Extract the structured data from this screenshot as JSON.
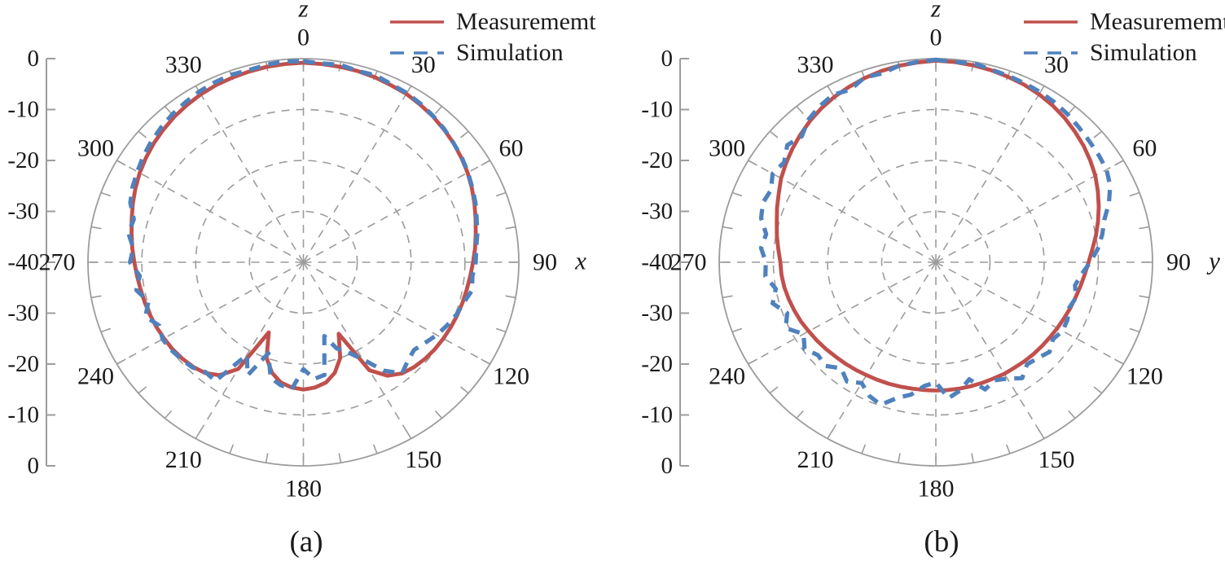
{
  "figure": {
    "background": "#ffffff",
    "text_color": "#1a1a1a",
    "grid_color": "#9c9c9c"
  },
  "legend": {
    "position": "top-right",
    "items": [
      {
        "label": "Measurememt",
        "color": "#c0504d",
        "line_style": "solid"
      },
      {
        "label": "Simulation",
        "color": "#4f81bd",
        "line_style": "dashed"
      }
    ]
  },
  "chart_data": [
    {
      "type": "line",
      "subtype": "polar-radiation-pattern",
      "caption": "(a)",
      "zenith_label": "z",
      "plane_label": "x",
      "grid": true,
      "legend_position": "top-right",
      "r_axis": {
        "min_db": -40,
        "max_db": 0,
        "step_db": 10,
        "tick_labels": [
          "0",
          "-10",
          "-20",
          "-30",
          "-40",
          "-30",
          "-20",
          "-10",
          "0"
        ],
        "ring_levels_db": [
          -10,
          -20,
          -30
        ]
      },
      "theta_axis": {
        "tick_step_deg": 10,
        "spoke_step_deg": 30,
        "tick_labels": [
          "0",
          "30",
          "60",
          "90",
          "120",
          "150",
          "180",
          "210",
          "240",
          "270",
          "300",
          "330"
        ]
      },
      "angles_deg": [
        0,
        5,
        10,
        15,
        20,
        25,
        30,
        35,
        40,
        45,
        50,
        55,
        60,
        65,
        70,
        75,
        80,
        85,
        90,
        95,
        100,
        105,
        110,
        115,
        120,
        125,
        130,
        135,
        140,
        145,
        150,
        155,
        160,
        165,
        170,
        175,
        180,
        185,
        190,
        195,
        200,
        205,
        210,
        215,
        220,
        225,
        230,
        235,
        240,
        245,
        250,
        255,
        260,
        265,
        270,
        275,
        280,
        285,
        290,
        295,
        300,
        305,
        310,
        315,
        320,
        325,
        330,
        335,
        340,
        345,
        350,
        355
      ],
      "series": [
        {
          "name": "Measurememt",
          "color": "#c0504d",
          "line_style": "solid",
          "values_db": [
            -0.8,
            -0.9,
            -1.0,
            -1.1,
            -1.3,
            -1.6,
            -1.8,
            -2.2,
            -2.6,
            -3.1,
            -3.6,
            -4.2,
            -4.8,
            -5.5,
            -6.2,
            -6.9,
            -7.5,
            -8.0,
            -8.5,
            -8.9,
            -9.2,
            -9.4,
            -9.6,
            -9.8,
            -10.0,
            -10.2,
            -10.5,
            -10.9,
            -11.5,
            -12.8,
            -15.5,
            -24.5,
            -20.0,
            -17.5,
            -16.0,
            -15.3,
            -15.0,
            -15.3,
            -16.0,
            -17.5,
            -20.0,
            -24.8,
            -15.8,
            -12.9,
            -11.6,
            -11.0,
            -10.6,
            -10.3,
            -10.1,
            -9.9,
            -9.7,
            -9.5,
            -9.3,
            -9.0,
            -8.6,
            -8.1,
            -7.6,
            -7.0,
            -6.3,
            -5.6,
            -4.9,
            -4.3,
            -3.7,
            -3.2,
            -2.7,
            -2.3,
            -1.9,
            -1.6,
            -1.4,
            -1.2,
            -1.0,
            -0.9
          ]
        },
        {
          "name": "Simulation",
          "color": "#4f81bd",
          "line_style": "dashed",
          "values_db": [
            -0.5,
            -0.8,
            -0.6,
            -1.1,
            -0.9,
            -1.4,
            -1.6,
            -2.0,
            -2.5,
            -3.0,
            -3.6,
            -4.1,
            -4.7,
            -5.4,
            -6.0,
            -6.7,
            -7.2,
            -7.8,
            -8.0,
            -8.5,
            -8.2,
            -9.2,
            -9.8,
            -10.6,
            -11.4,
            -12.4,
            -13.2,
            -12.6,
            -11.5,
            -14.0,
            -18.0,
            -20.5,
            -22.0,
            -25.0,
            -17.5,
            -17.0,
            -19.0,
            -15.0,
            -15.5,
            -16.5,
            -21.0,
            -15.5,
            -19.0,
            -11.5,
            -11.8,
            -10.8,
            -10.4,
            -10.0,
            -9.8,
            -10.5,
            -8.8,
            -10.2,
            -8.5,
            -9.5,
            -7.8,
            -8.3,
            -7.0,
            -7.4,
            -5.8,
            -5.0,
            -4.4,
            -3.7,
            -3.1,
            -2.6,
            -2.1,
            -1.7,
            -1.3,
            -1.0,
            -0.8,
            -0.9,
            -0.6,
            -0.4
          ]
        }
      ]
    },
    {
      "type": "line",
      "subtype": "polar-radiation-pattern",
      "caption": "(b)",
      "zenith_label": "z",
      "plane_label": "y",
      "grid": true,
      "legend_position": "top-right",
      "r_axis": {
        "min_db": -40,
        "max_db": 0,
        "step_db": 10,
        "tick_labels": [
          "0",
          "-10",
          "-20",
          "-30",
          "-40",
          "-30",
          "-20",
          "-10",
          "0"
        ],
        "ring_levels_db": [
          -10,
          -20,
          -30
        ]
      },
      "theta_axis": {
        "tick_step_deg": 10,
        "spoke_step_deg": 30,
        "tick_labels": [
          "0",
          "30",
          "60",
          "90",
          "120",
          "150",
          "180",
          "210",
          "240",
          "270",
          "300",
          "330"
        ]
      },
      "angles_deg": [
        0,
        5,
        10,
        15,
        20,
        25,
        30,
        35,
        40,
        45,
        50,
        55,
        60,
        65,
        70,
        75,
        80,
        85,
        90,
        95,
        100,
        105,
        110,
        115,
        120,
        125,
        130,
        135,
        140,
        145,
        150,
        155,
        160,
        165,
        170,
        175,
        180,
        185,
        190,
        195,
        200,
        205,
        210,
        215,
        220,
        225,
        230,
        235,
        240,
        245,
        250,
        255,
        260,
        265,
        270,
        275,
        280,
        285,
        290,
        295,
        300,
        305,
        310,
        315,
        320,
        325,
        330,
        335,
        340,
        345,
        350,
        355
      ],
      "series": [
        {
          "name": "Measurememt",
          "color": "#c0504d",
          "line_style": "solid",
          "values_db": [
            -0.4,
            -0.5,
            -0.7,
            -0.9,
            -1.2,
            -1.5,
            -1.9,
            -2.4,
            -3.0,
            -3.7,
            -4.4,
            -5.2,
            -6.0,
            -7.0,
            -8.0,
            -9.0,
            -10.0,
            -11.0,
            -11.8,
            -12.4,
            -12.9,
            -13.3,
            -13.6,
            -13.9,
            -14.1,
            -14.3,
            -14.4,
            -14.5,
            -14.6,
            -14.7,
            -14.7,
            -14.8,
            -14.8,
            -14.8,
            -14.8,
            -14.8,
            -14.8,
            -14.8,
            -14.8,
            -14.7,
            -14.6,
            -14.5,
            -14.4,
            -14.2,
            -14.0,
            -13.8,
            -13.5,
            -13.2,
            -12.9,
            -12.5,
            -12.2,
            -11.9,
            -11.6,
            -11.4,
            -11.3,
            -10.8,
            -10.2,
            -9.6,
            -8.8,
            -8.0,
            -7.0,
            -6.2,
            -5.4,
            -4.6,
            -3.8,
            -3.1,
            -2.5,
            -2.0,
            -1.5,
            -1.1,
            -0.8,
            -0.6
          ]
        },
        {
          "name": "Simulation",
          "color": "#4f81bd",
          "line_style": "dashed",
          "values_db": [
            -0.2,
            -0.5,
            -0.3,
            -0.8,
            -1.0,
            -1.2,
            -1.4,
            -1.7,
            -2.1,
            -2.6,
            -3.0,
            -3.3,
            -3.6,
            -4.5,
            -6.0,
            -7.8,
            -8.8,
            -10.0,
            -11.5,
            -13.0,
            -13.9,
            -13.2,
            -13.8,
            -13.2,
            -13.0,
            -13.6,
            -12.6,
            -13.4,
            -13.8,
            -12.2,
            -13.6,
            -14.4,
            -13.4,
            -16.2,
            -14.4,
            -13.2,
            -16.4,
            -15.6,
            -13.6,
            -12.4,
            -10.2,
            -11.0,
            -12.6,
            -11.4,
            -12.8,
            -11.2,
            -11.6,
            -10.4,
            -11.8,
            -9.4,
            -10.8,
            -8.8,
            -10.0,
            -8.4,
            -8.6,
            -7.6,
            -8.2,
            -6.6,
            -6.0,
            -6.4,
            -5.2,
            -5.8,
            -4.2,
            -5.0,
            -3.4,
            -2.6,
            -2.0,
            -2.6,
            -1.4,
            -1.6,
            -0.8,
            -0.5
          ]
        }
      ]
    }
  ]
}
